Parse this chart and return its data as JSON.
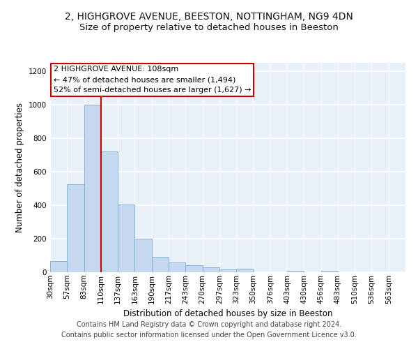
{
  "title_line1": "2, HIGHGROVE AVENUE, BEESTON, NOTTINGHAM, NG9 4DN",
  "title_line2": "Size of property relative to detached houses in Beeston",
  "xlabel": "Distribution of detached houses by size in Beeston",
  "ylabel": "Number of detached properties",
  "footer_line1": "Contains HM Land Registry data © Crown copyright and database right 2024.",
  "footer_line2": "Contains public sector information licensed under the Open Government Licence v3.0.",
  "annotation_line1": "2 HIGHGROVE AVENUE: 108sqm",
  "annotation_line2": "← 47% of detached houses are smaller (1,494)",
  "annotation_line3": "52% of semi-detached houses are larger (1,627) →",
  "bar_values": [
    65,
    525,
    1000,
    720,
    405,
    200,
    90,
    60,
    40,
    30,
    17,
    20,
    0,
    0,
    10,
    0,
    8,
    0,
    0,
    0,
    0
  ],
  "categories": [
    "30sqm",
    "57sqm",
    "83sqm",
    "110sqm",
    "137sqm",
    "163sqm",
    "190sqm",
    "217sqm",
    "243sqm",
    "270sqm",
    "297sqm",
    "323sqm",
    "350sqm",
    "376sqm",
    "403sqm",
    "430sqm",
    "456sqm",
    "483sqm",
    "510sqm",
    "536sqm",
    "563sqm"
  ],
  "bar_color": "#c5d8f0",
  "bar_edge_color": "#7aadd4",
  "red_line_x": 3.0,
  "ylim": [
    0,
    1250
  ],
  "yticks": [
    0,
    200,
    400,
    600,
    800,
    1000,
    1200
  ],
  "background_color": "#eaf0f8",
  "grid_color": "#ffffff",
  "annotation_box_color": "#ffffff",
  "annotation_box_edge": "#cc0000",
  "red_line_color": "#cc0000",
  "title_fontsize": 10,
  "subtitle_fontsize": 9.5,
  "axis_label_fontsize": 8.5,
  "tick_fontsize": 7.5,
  "footer_fontsize": 7,
  "annotation_fontsize": 8
}
